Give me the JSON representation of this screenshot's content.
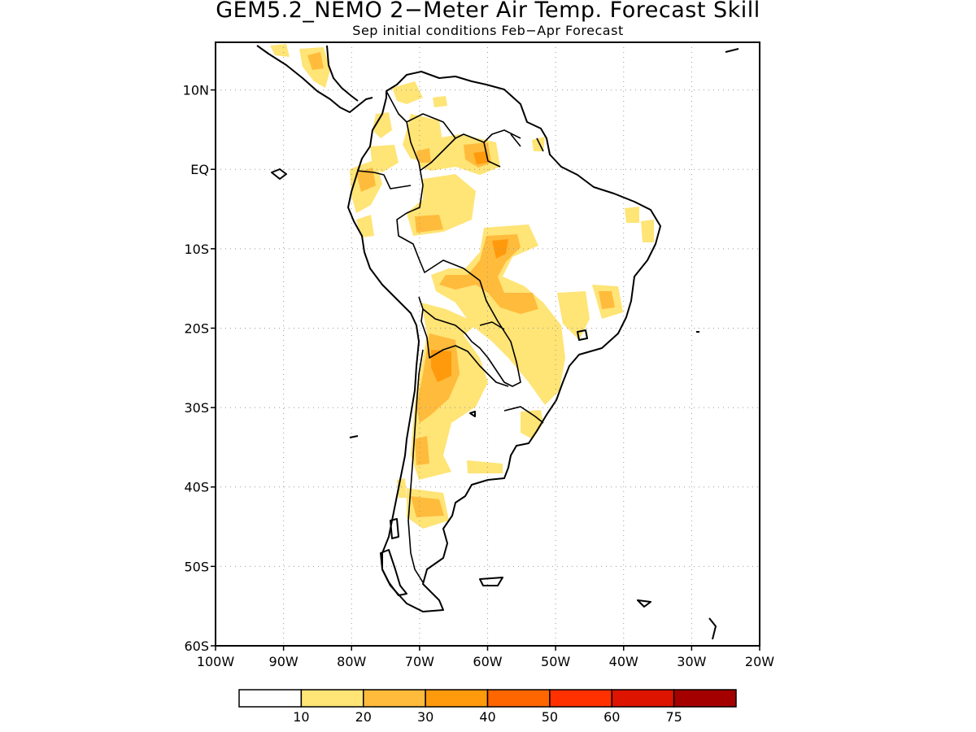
{
  "title": "GEM5.2_NEMO 2−Meter Air Temp. Forecast Skill",
  "subtitle": "Sep initial conditions  Feb−Apr Forecast",
  "map": {
    "projection": "lat-lon",
    "lon_range": [
      -100,
      -20
    ],
    "lat_range": [
      -60,
      16
    ],
    "grid": "dotted",
    "lat_labels": [
      {
        "value": 10,
        "label": "10N"
      },
      {
        "value": 0,
        "label": "EQ"
      },
      {
        "value": -10,
        "label": "10S"
      },
      {
        "value": -20,
        "label": "20S"
      },
      {
        "value": -30,
        "label": "30S"
      },
      {
        "value": -40,
        "label": "40S"
      },
      {
        "value": -50,
        "label": "50S"
      },
      {
        "value": -60,
        "label": "60S"
      }
    ],
    "lon_labels": [
      {
        "value": -100,
        "label": "100W"
      },
      {
        "value": -90,
        "label": "90W"
      },
      {
        "value": -80,
        "label": "80W"
      },
      {
        "value": -70,
        "label": "70W"
      },
      {
        "value": -60,
        "label": "60W"
      },
      {
        "value": -50,
        "label": "50W"
      },
      {
        "value": -40,
        "label": "40W"
      },
      {
        "value": -30,
        "label": "30W"
      },
      {
        "value": -20,
        "label": "20W"
      }
    ]
  },
  "colorbar": {
    "bins": [
      {
        "color": "#ffffff"
      },
      {
        "color": "#ffe476"
      },
      {
        "color": "#ffbb3c"
      },
      {
        "color": "#ff9a0c"
      },
      {
        "color": "#ff6600"
      },
      {
        "color": "#ff3100"
      },
      {
        "color": "#dd1400"
      },
      {
        "color": "#a50000"
      }
    ],
    "labels": [
      "10",
      "20",
      "30",
      "40",
      "50",
      "60",
      "75"
    ]
  }
}
